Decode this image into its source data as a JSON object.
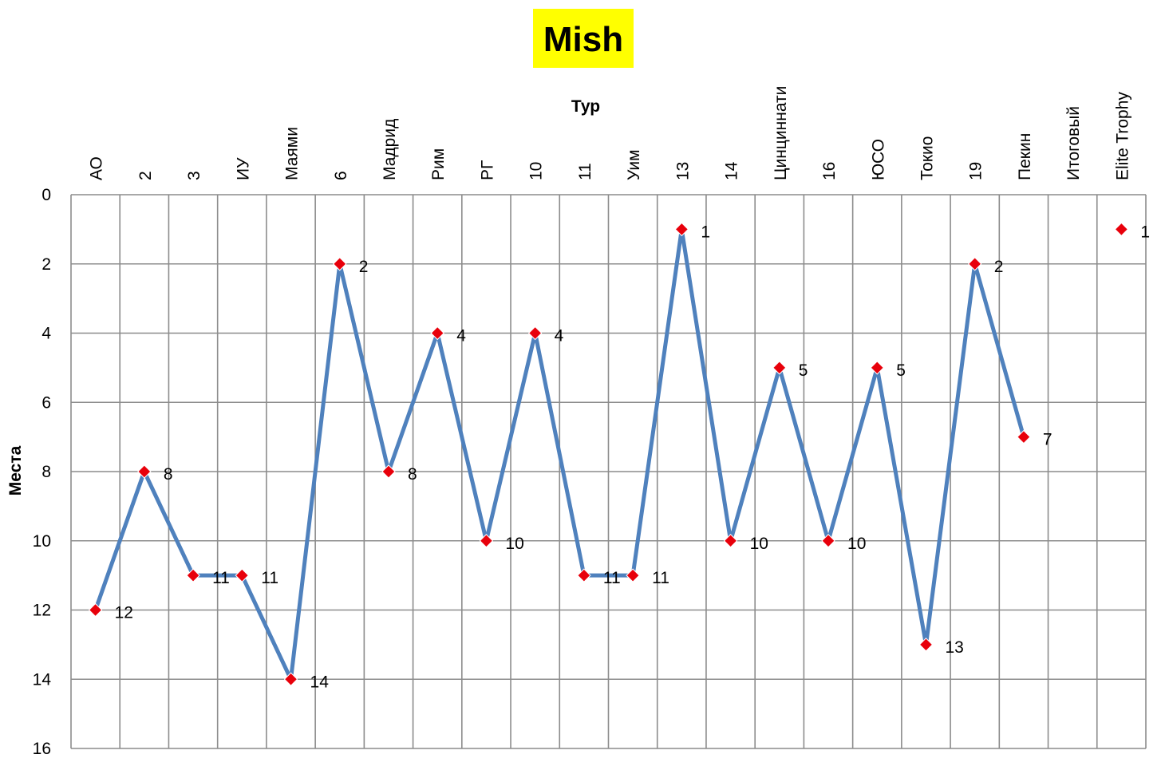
{
  "chart_data": {
    "type": "line",
    "title": "Mish",
    "xlabel": "Тур",
    "ylabel": "Места",
    "categories": [
      "АО",
      "2",
      "3",
      "ИУ",
      "Маями",
      "6",
      "Мадрид",
      "Рим",
      "РГ",
      "10",
      "11",
      "Уим",
      "13",
      "14",
      "Цинциннати",
      "16",
      "ЮСО",
      "Токио",
      "19",
      "Пекин",
      "Итоговый",
      "Elite Trophy"
    ],
    "series": [
      {
        "values": [
          12,
          8,
          11,
          11,
          14,
          2,
          8,
          4,
          10,
          4,
          11,
          11,
          1,
          10,
          5,
          10,
          5,
          13,
          2,
          7,
          null,
          1
        ],
        "data_labels": [
          "12",
          "8",
          "11",
          "11",
          "14",
          "2",
          "8",
          "4",
          "10",
          "4",
          "11",
          "11",
          "1",
          "10",
          "5",
          "10",
          "5",
          "13",
          "2",
          "7",
          "",
          "1"
        ]
      }
    ],
    "ylim": [
      0,
      16
    ],
    "yticks": [
      0,
      2,
      4,
      6,
      8,
      10,
      12,
      14,
      16
    ],
    "y_reversed": true,
    "grid": true,
    "legend": "none",
    "line_color": "#4f81bd",
    "marker_color": "#e8000b",
    "title_background": "#ffff00"
  }
}
